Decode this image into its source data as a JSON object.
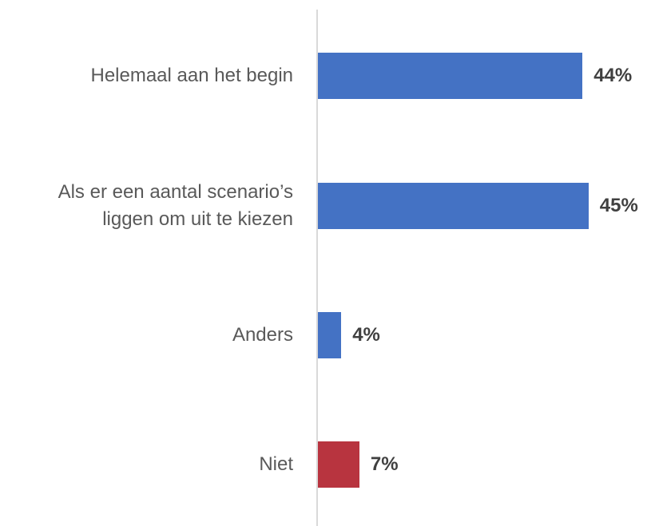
{
  "chart_data": {
    "type": "bar",
    "orientation": "horizontal",
    "categories": [
      "Helemaal aan het begin",
      "Als er een aantal scenario’s liggen om uit te kiezen",
      "Anders",
      "Niet"
    ],
    "values": [
      44,
      45,
      4,
      7
    ],
    "value_labels": [
      "44%",
      "45%",
      "4%",
      "7%"
    ],
    "colors": [
      "#4472c4",
      "#4472c4",
      "#4472c4",
      "#b8343f"
    ]
  }
}
